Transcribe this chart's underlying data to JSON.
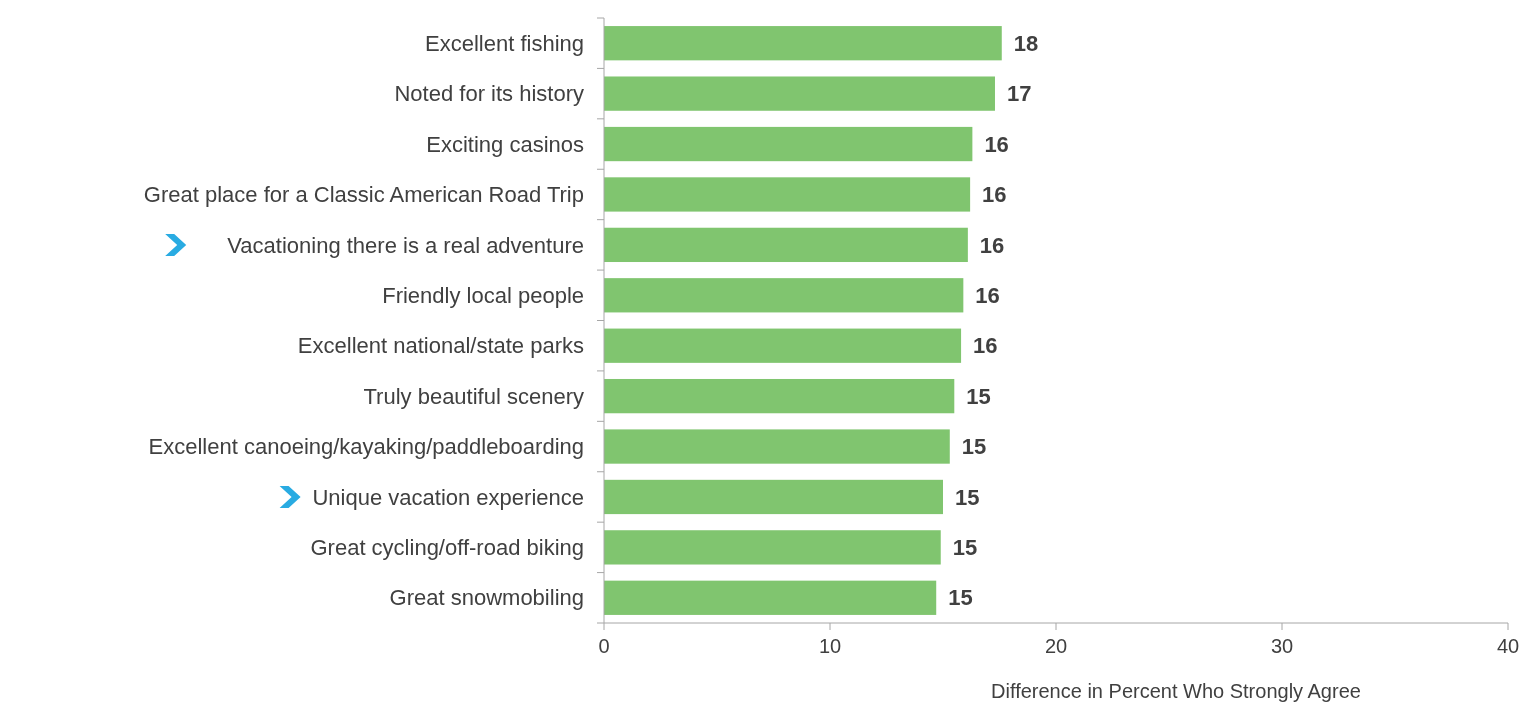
{
  "chart_data": {
    "type": "bar",
    "orientation": "horizontal",
    "xlabel": "Difference in Percent Who Strongly Agree",
    "categories": [
      "Excellent fishing",
      "Noted for its history",
      "Exciting casinos",
      "Great place for a Classic American Road Trip",
      "Vacationing there is a real adventure",
      "Friendly local people",
      "Excellent national/state parks",
      "Truly beautiful scenery",
      "Excellent canoeing/kayaking/paddleboarding",
      "Unique vacation experience",
      "Great cycling/off-road biking",
      "Great snowmobiling"
    ],
    "values": [
      17.6,
      17.3,
      16.3,
      16.2,
      16.1,
      15.9,
      15.8,
      15.5,
      15.3,
      15.0,
      14.9,
      14.7
    ],
    "value_labels": [
      "18",
      "17",
      "16",
      "16",
      "16",
      "16",
      "16",
      "15",
      "15",
      "15",
      "15",
      "15"
    ],
    "color": "#80c56f",
    "xlim": [
      0,
      40
    ],
    "xticks": [
      0,
      10,
      20,
      30,
      40
    ]
  }
}
